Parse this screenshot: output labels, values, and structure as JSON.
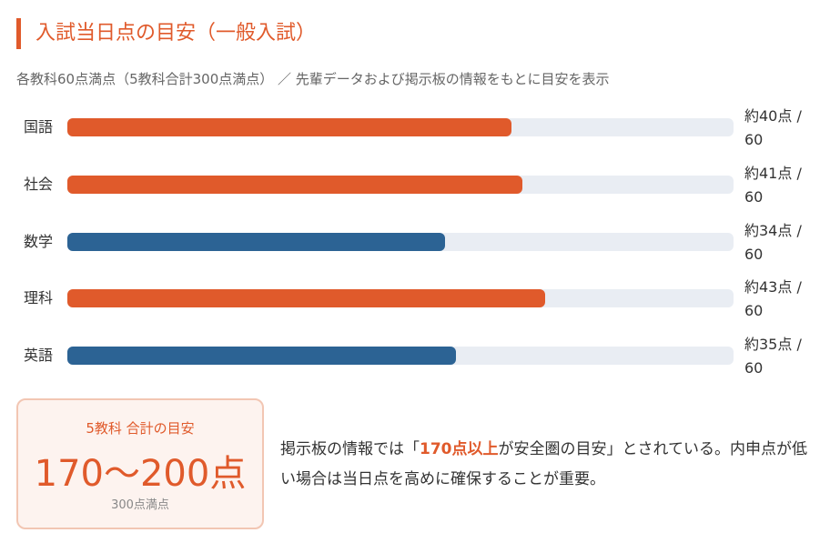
{
  "header": {
    "title": "入試当日点の目安（一般入試）",
    "subtitle": "各教科60点満点（5教科合計300点満点） ／ 先輩データおよび掲示板の情報をもとに目安を表示"
  },
  "chart_data": {
    "type": "bar",
    "categories": [
      "国語",
      "社会",
      "数学",
      "理科",
      "英語"
    ],
    "values": [
      40,
      41,
      34,
      43,
      35
    ],
    "value_labels": [
      "約40点 / 60",
      "約41点 / 60",
      "約34点 / 60",
      "約43点 / 60",
      "約35点 / 60"
    ],
    "colors": [
      "#e05a2b",
      "#e05a2b",
      "#2c6394",
      "#e05a2b",
      "#2c6394"
    ],
    "xlim": [
      0,
      60
    ]
  },
  "summary": {
    "label": "5教科 合計の目安",
    "range": "170〜200点",
    "note": "300点満点"
  },
  "note": {
    "before": "掲示板の情報では「",
    "highlight": "170点以上",
    "after": "が安全圏の目安」とされている。内申点が低い場合は当日点を高めに確保することが重要。"
  }
}
